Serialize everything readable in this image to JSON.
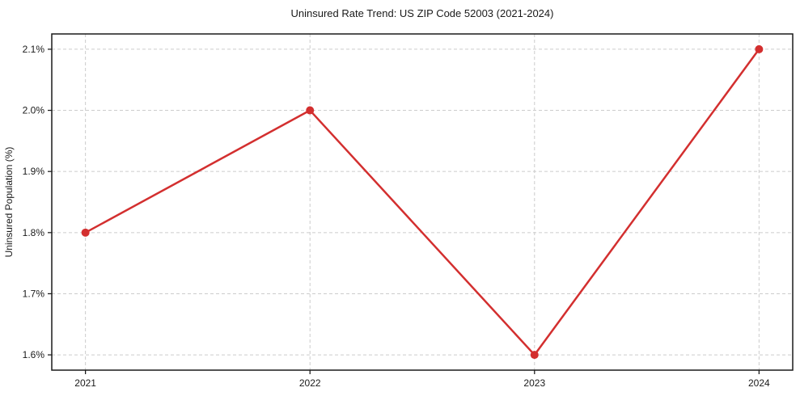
{
  "chart_data": {
    "type": "line",
    "title": "Uninsured Rate Trend: US ZIP Code 52003 (2021-2024)",
    "xlabel": "",
    "ylabel": "Uninsured Population (%)",
    "categories": [
      "2021",
      "2022",
      "2023",
      "2024"
    ],
    "x": [
      2021,
      2022,
      2023,
      2024
    ],
    "series": [
      {
        "name": "Uninsured Rate",
        "values": [
          1.8,
          2.0,
          1.6,
          2.1
        ]
      }
    ],
    "xlim": [
      2020.85,
      2024.15
    ],
    "ylim": [
      1.575,
      2.125
    ],
    "xticks": [
      2021,
      2022,
      2023,
      2024
    ],
    "xtick_labels": [
      "2021",
      "2022",
      "2023",
      "2024"
    ],
    "yticks": [
      1.6,
      1.7,
      1.8,
      1.9,
      2.0,
      2.1
    ],
    "ytick_labels": [
      "1.6%",
      "1.7%",
      "1.8%",
      "1.9%",
      "2.0%",
      "2.1%"
    ],
    "grid": true,
    "legend": false,
    "line_color": "#d32f2f",
    "marker": "circle",
    "marker_radius": 5,
    "line_width": 2.5,
    "grid_color": "#cccccc",
    "spine_color": "#1a1a1a",
    "background_color": "#ffffff"
  }
}
